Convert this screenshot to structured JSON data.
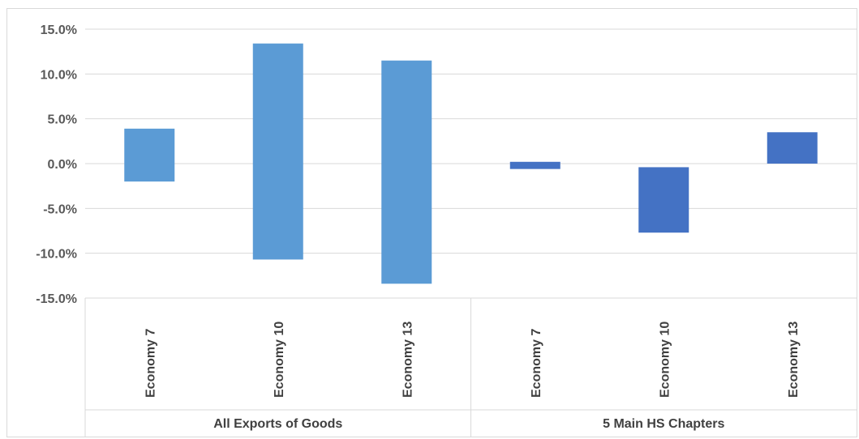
{
  "chart_data": {
    "type": "bar",
    "subtype": "floating-range",
    "title": "",
    "xlabel": "",
    "ylabel": "",
    "ylim": [
      -15,
      15
    ],
    "yticks": [
      15,
      10,
      5,
      0,
      -5,
      -10,
      -15
    ],
    "ytick_format": "percent-1dp",
    "grid": true,
    "legend": "none",
    "groups": [
      {
        "label": "All Exports of Goods",
        "color": "#5b9bd5",
        "categories": [
          "Economy 7",
          "Economy 10",
          "Economy 13"
        ],
        "ranges": [
          {
            "low": -2.0,
            "high": 3.9
          },
          {
            "low": -10.7,
            "high": 13.4
          },
          {
            "low": -13.4,
            "high": 11.5
          }
        ]
      },
      {
        "label": "5 Main HS Chapters",
        "color": "#4472c4",
        "categories": [
          "Economy 7",
          "Economy 10",
          "Economy 13"
        ],
        "ranges": [
          {
            "low": -0.6,
            "high": 0.2
          },
          {
            "low": -7.7,
            "high": -0.4
          },
          {
            "low": 0.0,
            "high": 3.5
          }
        ]
      }
    ]
  }
}
